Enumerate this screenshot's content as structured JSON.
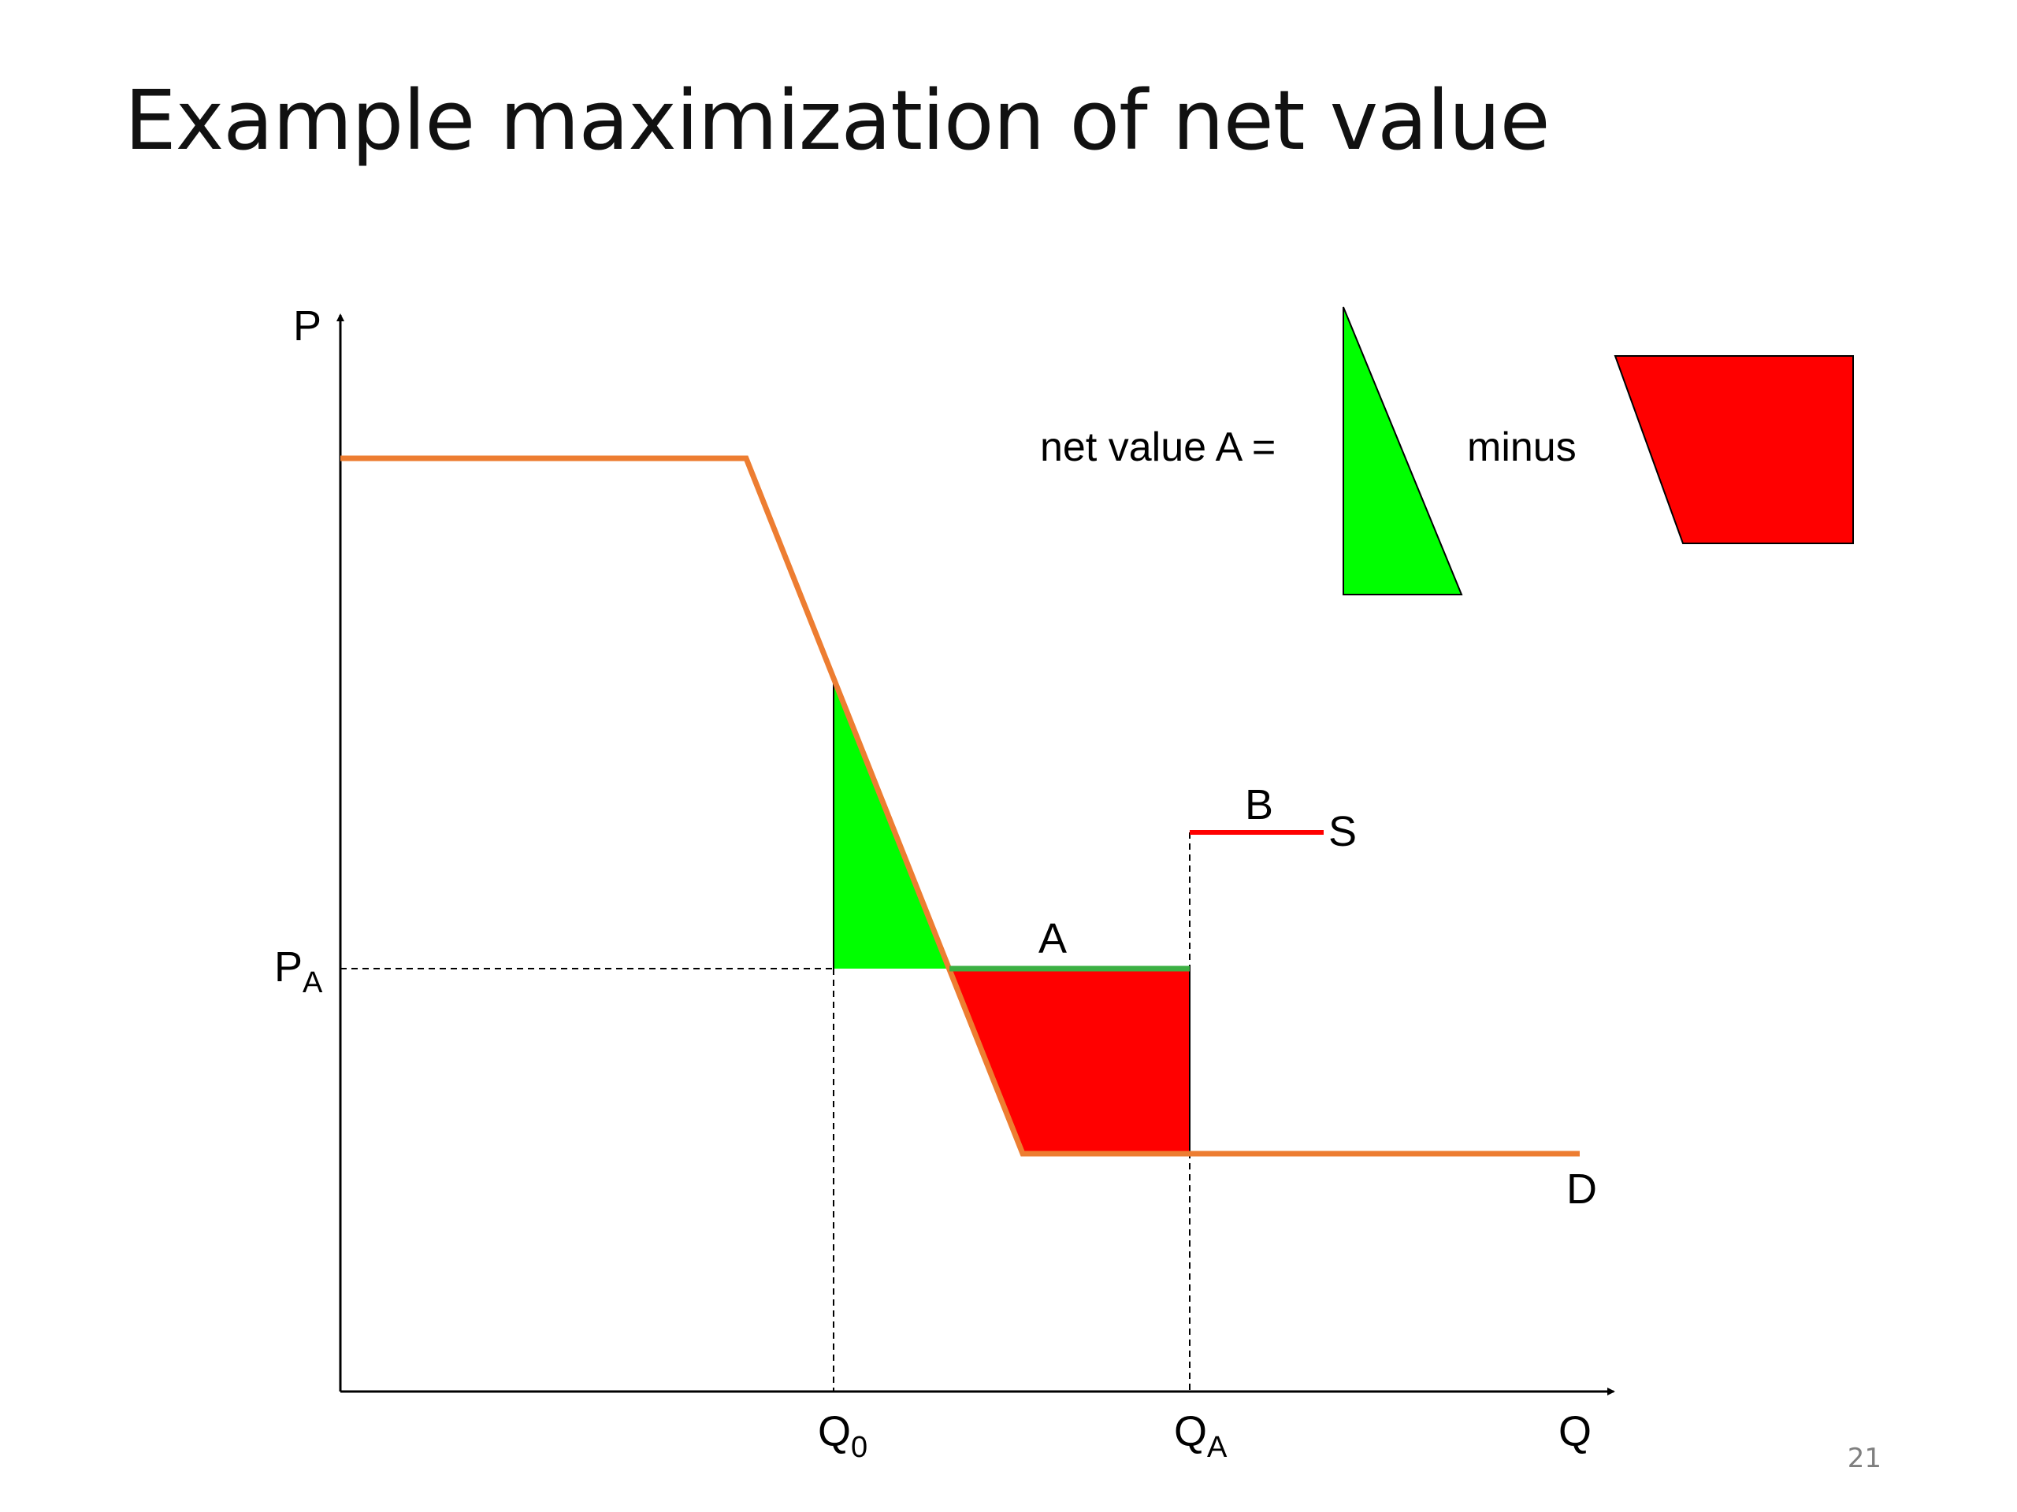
{
  "slide": {
    "title": "Example maximization of net value",
    "page_number": "21"
  },
  "diagram": {
    "y_axis_label": "P",
    "x_axis_label": "Q",
    "price_label": {
      "main": "P",
      "sub": "A"
    },
    "quantity_labels": [
      {
        "main": "Q",
        "sub": "0"
      },
      {
        "main": "Q",
        "sub": "A"
      }
    ],
    "demand_label": "D",
    "supply_label": "S",
    "offer_a_label": "A",
    "offer_b_label": "B",
    "legend": {
      "equation_text": "net value A =",
      "operator_text": "minus"
    },
    "colors": {
      "demand": "#ed7d31",
      "gain_area": "#00ff00",
      "loss_area": "#ff0000",
      "offer_a": "#3cb043",
      "offer_b": "#ff0000",
      "axis": "#000000"
    }
  }
}
